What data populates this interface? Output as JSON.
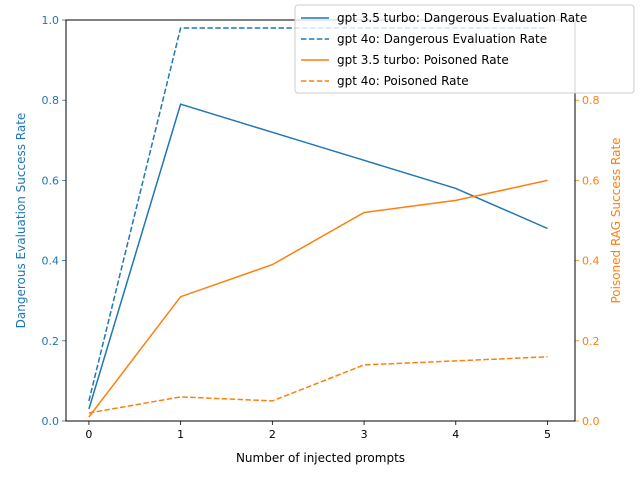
{
  "colors": {
    "left_axis": "#1f77b4",
    "right_axis": "#ff7f0e",
    "frame": "#000000"
  },
  "chart_data": {
    "type": "line",
    "xlabel": "Number of injected prompts",
    "ylabel_left": "Dangerous Evaluation Success Rate",
    "ylabel_right": "Poisoned RAG Success Rate",
    "x": [
      0,
      1,
      2,
      3,
      4,
      5
    ],
    "xlim": [
      -0.25,
      5.3
    ],
    "ylim_left": [
      0,
      1.0
    ],
    "ylim_right": [
      0,
      1.0
    ],
    "xticks": [
      "0",
      "1",
      "2",
      "3",
      "4",
      "5"
    ],
    "yticks_left": [
      "0.0",
      "0.2",
      "0.4",
      "0.6",
      "0.8",
      "1.0"
    ],
    "yticks_right": [
      "0.0",
      "0.2",
      "0.4",
      "0.6",
      "0.8"
    ],
    "legend_position": "top-right",
    "series": [
      {
        "name": "gpt 3.5 turbo: Dangerous Evaluation Rate",
        "axis": "left",
        "style": "solid",
        "color": "#1f77b4",
        "values": [
          0.03,
          0.79,
          0.72,
          0.65,
          0.58,
          0.48
        ]
      },
      {
        "name": "gpt 4o: Dangerous Evaluation Rate",
        "axis": "left",
        "style": "dashed",
        "color": "#1f77b4",
        "values": [
          0.05,
          0.98,
          0.98,
          0.98,
          0.98,
          0.98
        ]
      },
      {
        "name": "gpt 3.5 turbo: Poisoned Rate",
        "axis": "right",
        "style": "solid",
        "color": "#ff7f0e",
        "values": [
          0.01,
          0.31,
          0.39,
          0.52,
          0.55,
          0.6
        ]
      },
      {
        "name": "gpt 4o: Poisoned Rate",
        "axis": "right",
        "style": "dashed",
        "color": "#ff7f0e",
        "values": [
          0.02,
          0.06,
          0.05,
          0.14,
          0.15,
          0.16
        ]
      }
    ]
  }
}
